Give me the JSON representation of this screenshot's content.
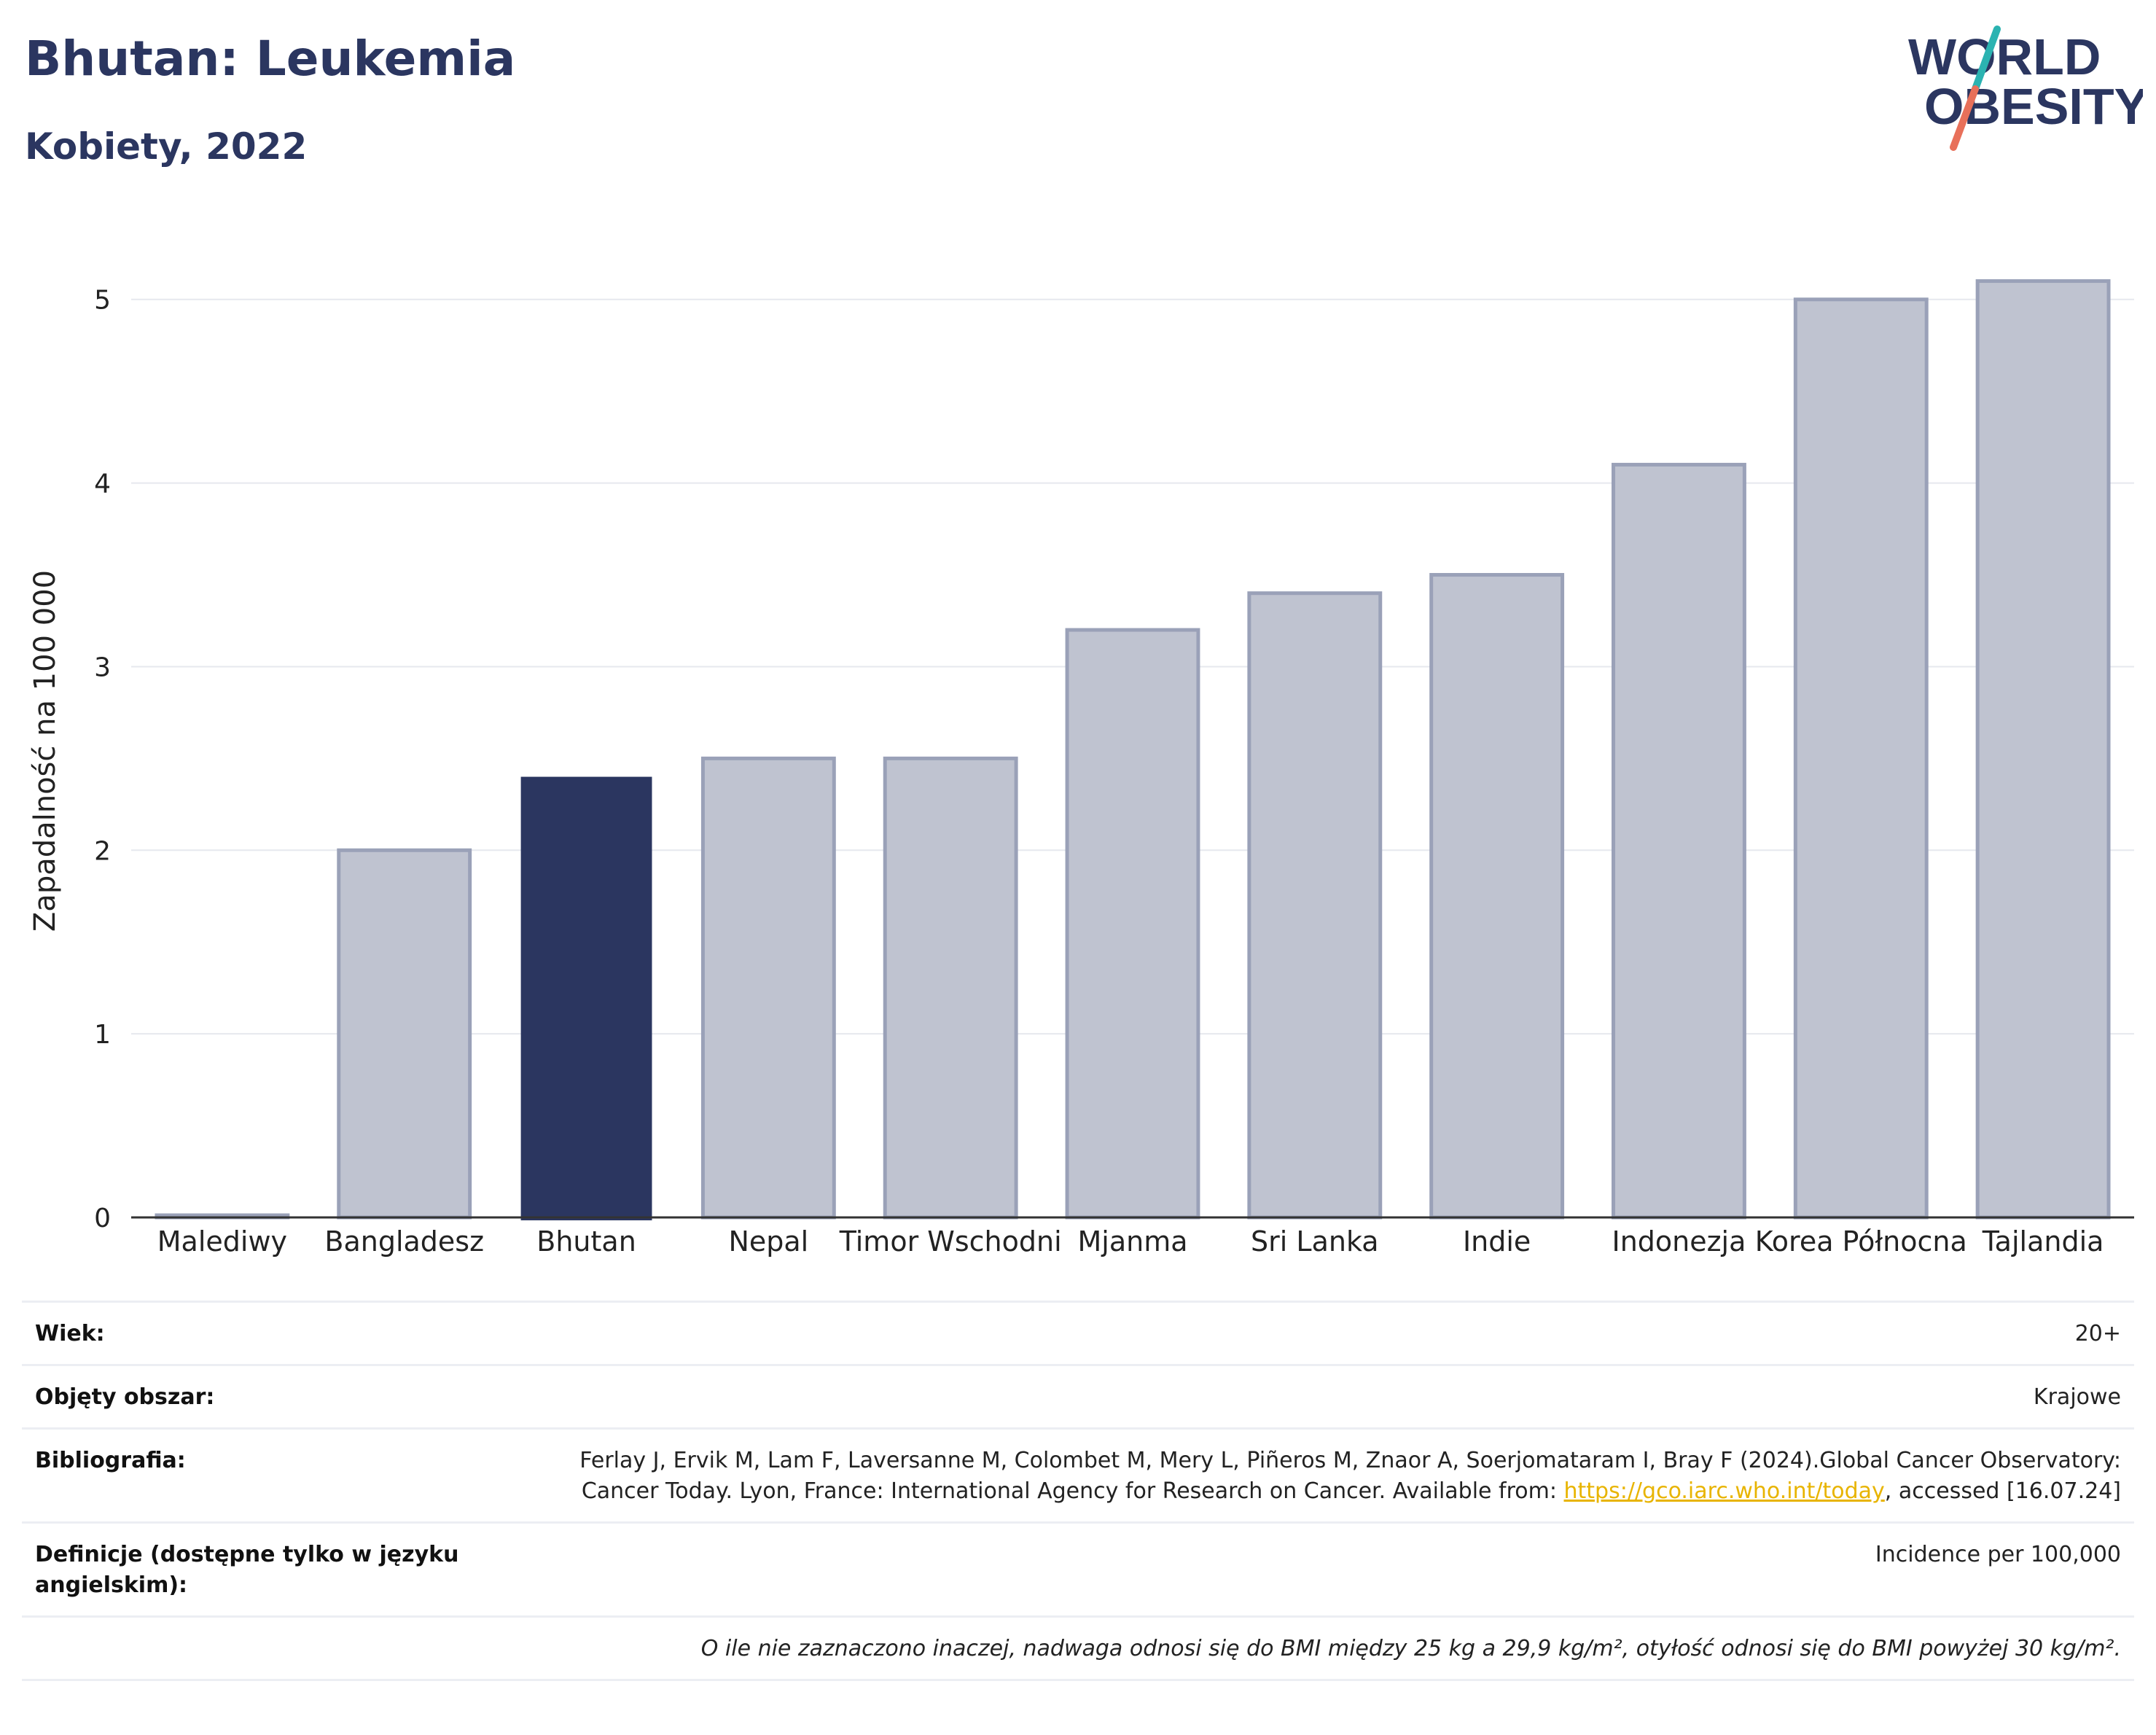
{
  "header": {
    "title": "Bhutan: Leukemia",
    "subtitle": "Kobiety, 2022"
  },
  "logo": {
    "line1": "WORLD",
    "line2": "OBESITY",
    "slash_colors": [
      "#2bb3b1",
      "#e8705a"
    ],
    "text_color": "#2b3660"
  },
  "colors": {
    "highlight": "#2b3660",
    "bar_fill": "#bfc3d0",
    "bar_stroke": "#9aa1b8",
    "grid": "#e6e8ee"
  },
  "chart_data": {
    "type": "bar",
    "title": "Bhutan: Leukemia",
    "subtitle": "Kobiety, 2022",
    "xlabel": "",
    "ylabel": "Zapadalność na 100 000",
    "categories": [
      "Malediwy",
      "Bangladesz",
      "Bhutan",
      "Nepal",
      "Timor Wschodni",
      "Mjanma",
      "Sri Lanka",
      "Indie",
      "Indonezja",
      "Korea Północna",
      "Tajlandia"
    ],
    "values": [
      0,
      2.0,
      2.4,
      2.5,
      2.5,
      3.2,
      3.4,
      3.5,
      4.1,
      5.0,
      5.1
    ],
    "highlight": "Bhutan",
    "ylim": [
      0,
      5.4
    ],
    "yticks": [
      0,
      1,
      2,
      3,
      4,
      5
    ],
    "grid": true,
    "legend": "none"
  },
  "meta": {
    "age_label": "Wiek:",
    "age_value": "20+",
    "area_label": "Objęty obszar:",
    "area_value": "Krajowe",
    "bib_label": "Bibliografia:",
    "bib_text": "Ferlay J, Ervik M, Lam F, Laversanne M, Colombet M, Mery L, Piñeros M, Znaor A, Soerjomataram I, Bray F (2024).Global Cancer Observatory: Cancer Today. Lyon, France: International Agency for Research on Cancer. Available from: ",
    "bib_link": "https://gco.iarc.who.int/today",
    "bib_suffix": ", accessed [16.07.24]",
    "def_label": "Definicje (dostępne tylko w języku angielskim):",
    "def_value": "Incidence per 100,000",
    "note": "O ile nie zaznaczono inaczej, nadwaga odnosi się do BMI między 25 kg a 29,9 kg/m², otyłość odnosi się do BMI powyżej 30 kg/m²."
  }
}
